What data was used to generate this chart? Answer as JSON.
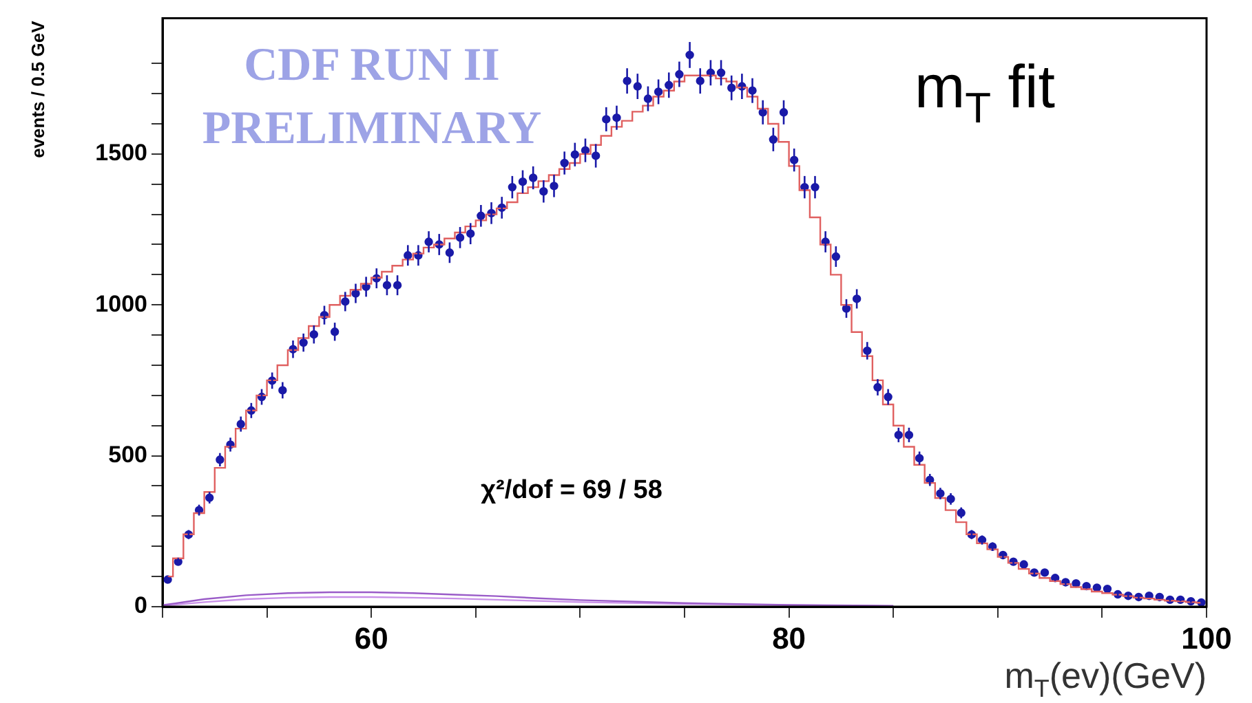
{
  "chart_data": {
    "type": "scatter",
    "title": "m$_{T}$ fit",
    "xlabel": "m$_{T}$(ev)(GeV)",
    "ylabel": "events / 0.5 GeV",
    "annotations": [
      "CDF RUN II PRELIMINARY",
      "χ²/dof = 69 / 58"
    ],
    "xlim": [
      50,
      100
    ],
    "xticks": [
      {
        "value": 50,
        "label": null
      },
      {
        "value": 55,
        "label": null
      },
      60,
      {
        "value": 65,
        "label": null
      },
      {
        "value": 70,
        "label": null
      },
      {
        "value": 75,
        "label": null
      },
      80,
      {
        "value": 85,
        "label": null
      },
      {
        "value": 90,
        "label": null
      },
      {
        "value": 95,
        "label": null
      },
      100
    ],
    "ylim": [
      0,
      1950
    ],
    "yticks": [
      0,
      {
        "value": 100,
        "label": null
      },
      {
        "value": 200,
        "label": null
      },
      {
        "value": 300,
        "label": null
      },
      {
        "value": 400,
        "label": null
      },
      500,
      {
        "value": 600,
        "label": null
      },
      {
        "value": 700,
        "label": null
      },
      {
        "value": 800,
        "label": null
      },
      {
        "value": 900,
        "label": null
      },
      1000,
      {
        "value": 1100,
        "label": null
      },
      {
        "value": 1200,
        "label": null
      },
      {
        "value": 1300,
        "label": null
      },
      {
        "value": 1400,
        "label": null
      },
      1500,
      {
        "value": 1600,
        "label": null
      },
      {
        "value": 1700,
        "label": null
      },
      {
        "value": 1800,
        "label": null
      }
    ],
    "grid": false,
    "legend": false,
    "series": [
      {
        "type": "step",
        "color": "#e06060",
        "x": [
          50.25,
          50.75,
          51.25,
          51.75,
          52.25,
          52.75,
          53.25,
          53.75,
          54.25,
          54.75,
          55.25,
          55.75,
          56.25,
          56.75,
          57.25,
          57.75,
          58.25,
          58.75,
          59.25,
          59.75,
          60.25,
          60.75,
          61.25,
          61.75,
          62.25,
          62.75,
          63.25,
          63.75,
          64.25,
          64.75,
          65.25,
          65.75,
          66.25,
          66.75,
          67.25,
          67.75,
          68.25,
          68.75,
          69.25,
          69.75,
          70.25,
          70.75,
          71.25,
          71.75,
          72.25,
          72.75,
          73.25,
          73.75,
          74.25,
          74.75,
          75.25,
          75.75,
          76.25,
          76.75,
          77.25,
          77.75,
          78.25,
          78.75,
          79.25,
          79.75,
          80.25,
          80.75,
          81.25,
          81.75,
          82.25,
          82.75,
          83.25,
          83.75,
          84.25,
          84.75,
          85.25,
          85.75,
          86.25,
          86.75,
          87.25,
          87.75,
          88.25,
          88.75,
          89.25,
          89.75,
          90.25,
          90.75,
          91.25,
          91.75,
          92.25,
          92.75,
          93.25,
          93.75,
          94.25,
          94.75,
          95.25,
          95.75,
          96.25,
          96.75,
          97.25,
          97.75,
          98.25,
          98.75,
          99.25,
          99.75
        ],
        "values": [
          100,
          160,
          240,
          310,
          380,
          460,
          530,
          590,
          650,
          700,
          750,
          800,
          850,
          890,
          930,
          960,
          1000,
          1030,
          1050,
          1070,
          1090,
          1110,
          1130,
          1150,
          1170,
          1190,
          1200,
          1220,
          1240,
          1260,
          1280,
          1300,
          1320,
          1340,
          1370,
          1390,
          1410,
          1430,
          1450,
          1470,
          1500,
          1530,
          1560,
          1590,
          1610,
          1640,
          1660,
          1690,
          1710,
          1740,
          1760,
          1760,
          1760,
          1750,
          1740,
          1720,
          1690,
          1650,
          1600,
          1540,
          1460,
          1380,
          1290,
          1200,
          1100,
          1000,
          910,
          830,
          750,
          670,
          600,
          530,
          470,
          410,
          360,
          320,
          280,
          240,
          210,
          190,
          165,
          145,
          125,
          110,
          95,
          85,
          75,
          65,
          58,
          50,
          45,
          40,
          35,
          30,
          27,
          23,
          20,
          18,
          15,
          13
        ]
      },
      {
        "type": "line",
        "color": "#9a5cc8",
        "x": [
          50,
          52,
          54,
          56,
          58,
          60,
          62,
          64,
          66,
          68,
          70,
          75,
          80,
          85
        ],
        "values": [
          5,
          25,
          38,
          45,
          48,
          48,
          45,
          40,
          35,
          28,
          22,
          12,
          6,
          3
        ]
      },
      {
        "type": "line",
        "color": "#c890e8",
        "x": [
          50,
          52,
          54,
          56,
          58,
          60,
          62,
          64,
          66,
          68,
          70,
          75,
          80,
          85
        ],
        "values": [
          3,
          15,
          25,
          30,
          32,
          32,
          30,
          27,
          23,
          19,
          15,
          9,
          5,
          2
        ]
      },
      {
        "marker": "circle",
        "color": "#1a1aa8",
        "x": [
          50.25,
          50.75,
          51.25,
          51.75,
          52.25,
          52.75,
          53.25,
          53.75,
          54.25,
          54.75,
          55.25,
          55.75,
          56.25,
          56.75,
          57.25,
          57.75,
          58.25,
          58.75,
          59.25,
          59.75,
          60.25,
          60.75,
          61.25,
          61.75,
          62.25,
          62.75,
          63.25,
          63.75,
          64.25,
          64.75,
          65.25,
          65.75,
          66.25,
          66.75,
          67.25,
          67.75,
          68.25,
          68.75,
          69.25,
          69.75,
          70.25,
          70.75,
          71.25,
          71.75,
          72.25,
          72.75,
          73.25,
          73.75,
          74.25,
          74.75,
          75.25,
          75.75,
          76.25,
          76.75,
          77.25,
          77.75,
          78.25,
          78.75,
          79.25,
          79.75,
          80.25,
          80.75,
          81.25,
          81.75,
          82.25,
          82.75,
          83.25,
          83.75,
          84.25,
          84.75,
          85.25,
          85.75,
          86.25,
          86.75,
          87.25,
          87.75,
          88.25,
          88.75,
          89.25,
          89.75,
          90.25,
          90.75,
          91.25,
          91.75,
          92.25,
          92.75,
          93.25,
          93.75,
          94.25,
          94.75,
          95.25,
          95.75,
          96.25,
          96.75,
          97.25,
          97.75,
          98.25,
          98.75,
          99.25,
          99.75
        ],
        "values": [
          90,
          149,
          239,
          320,
          361,
          487,
          537,
          605,
          650,
          695,
          749,
          717,
          853,
          875,
          902,
          966,
          911,
          1011,
          1038,
          1060,
          1088,
          1065,
          1065,
          1164,
          1164,
          1209,
          1200,
          1173,
          1223,
          1236,
          1295,
          1304,
          1322,
          1390,
          1408,
          1421,
          1376,
          1394,
          1470,
          1498,
          1512,
          1494,
          1615,
          1620,
          1742,
          1724,
          1683,
          1706,
          1728,
          1764,
          1828,
          1742,
          1769,
          1769,
          1719,
          1724,
          1710,
          1638,
          1548,
          1638,
          1480,
          1390,
          1390,
          1209,
          1160,
          988,
          1020,
          848,
          727,
          695,
          569,
          569,
          492,
          420,
          375,
          357,
          311,
          239,
          221,
          199,
          171,
          149,
          140,
          113,
          113,
          95,
          81,
          77,
          68,
          63,
          59,
          41,
          36,
          32,
          36,
          32,
          23,
          23,
          18,
          14
        ],
        "errors": [
          9,
          12,
          15,
          18,
          19,
          22,
          23,
          25,
          25,
          26,
          27,
          27,
          29,
          30,
          30,
          31,
          30,
          32,
          32,
          33,
          33,
          33,
          33,
          34,
          34,
          35,
          35,
          34,
          35,
          35,
          36,
          36,
          36,
          37,
          38,
          38,
          37,
          37,
          38,
          39,
          39,
          39,
          40,
          40,
          42,
          42,
          41,
          41,
          42,
          42,
          43,
          42,
          42,
          42,
          41,
          42,
          41,
          40,
          39,
          40,
          38,
          37,
          37,
          35,
          34,
          31,
          32,
          29,
          27,
          26,
          24,
          24,
          22,
          20,
          19,
          19,
          18,
          15,
          15,
          14,
          13,
          12,
          12,
          11,
          11,
          10,
          9,
          9,
          8,
          8,
          8,
          6,
          6,
          6,
          6,
          6,
          5,
          5,
          4,
          4
        ]
      }
    ]
  }
}
